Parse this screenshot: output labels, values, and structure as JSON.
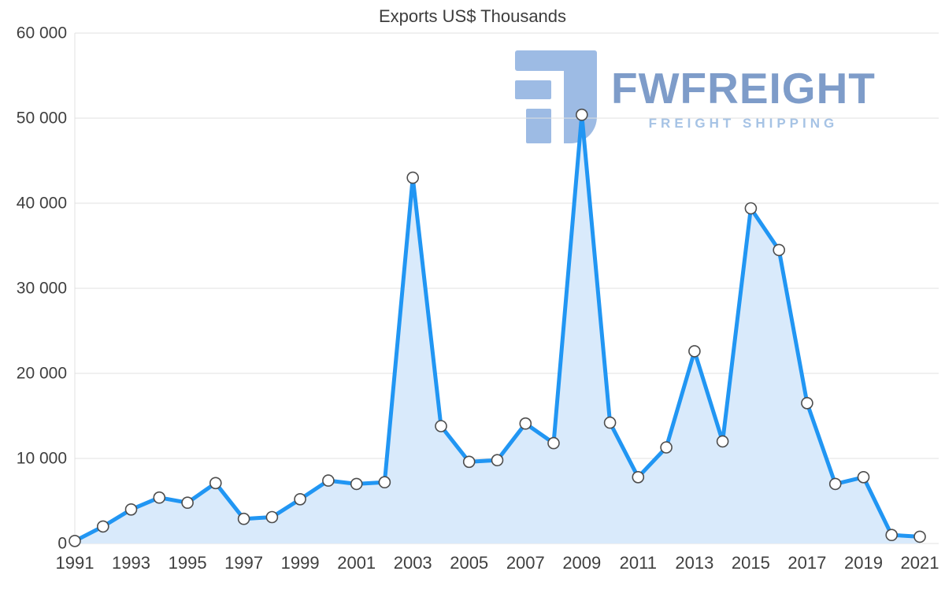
{
  "chart_data": {
    "type": "area",
    "title": "Exports US$ Thousands",
    "x": [
      1991,
      1992,
      1993,
      1994,
      1995,
      1996,
      1997,
      1998,
      1999,
      2000,
      2001,
      2002,
      2003,
      2004,
      2005,
      2006,
      2007,
      2008,
      2009,
      2010,
      2011,
      2012,
      2013,
      2014,
      2015,
      2016,
      2017,
      2018,
      2019,
      2020,
      2021
    ],
    "values": [
      300,
      2000,
      4000,
      5400,
      4800,
      7100,
      2900,
      3100,
      5200,
      7400,
      7000,
      7200,
      43000,
      13800,
      9600,
      9800,
      14100,
      11800,
      50400,
      14200,
      7800,
      11300,
      22600,
      12000,
      39400,
      34500,
      16500,
      7000,
      7800,
      1000,
      800
    ],
    "ylim": [
      0,
      60000
    ],
    "ytick_step": 10000,
    "ytick_labels": [
      "0",
      "10 000",
      "20 000",
      "30 000",
      "40 000",
      "50 000",
      "60 000"
    ],
    "xtick_labels": [
      "1991",
      "1993",
      "1995",
      "1997",
      "1999",
      "2001",
      "2003",
      "2005",
      "2007",
      "2009",
      "2011",
      "2013",
      "2015",
      "2017",
      "2019",
      "2021"
    ],
    "grid": "horizontal",
    "legend": "none",
    "line_color": "#2196f3",
    "fill_color": "#d9eafb",
    "grid_color": "#e0e0e0",
    "text_color": "#3f3f3f",
    "marker_fill": "#ffffff",
    "marker_stroke": "#4d4d4d"
  },
  "watermark": {
    "brand": "FWFREIGHT",
    "tagline": "FREIGHT SHIPPING",
    "brand_color": "#7e9cc9",
    "tagline_color": "#a6c3e5",
    "logo_color": "#8cb0e0"
  }
}
